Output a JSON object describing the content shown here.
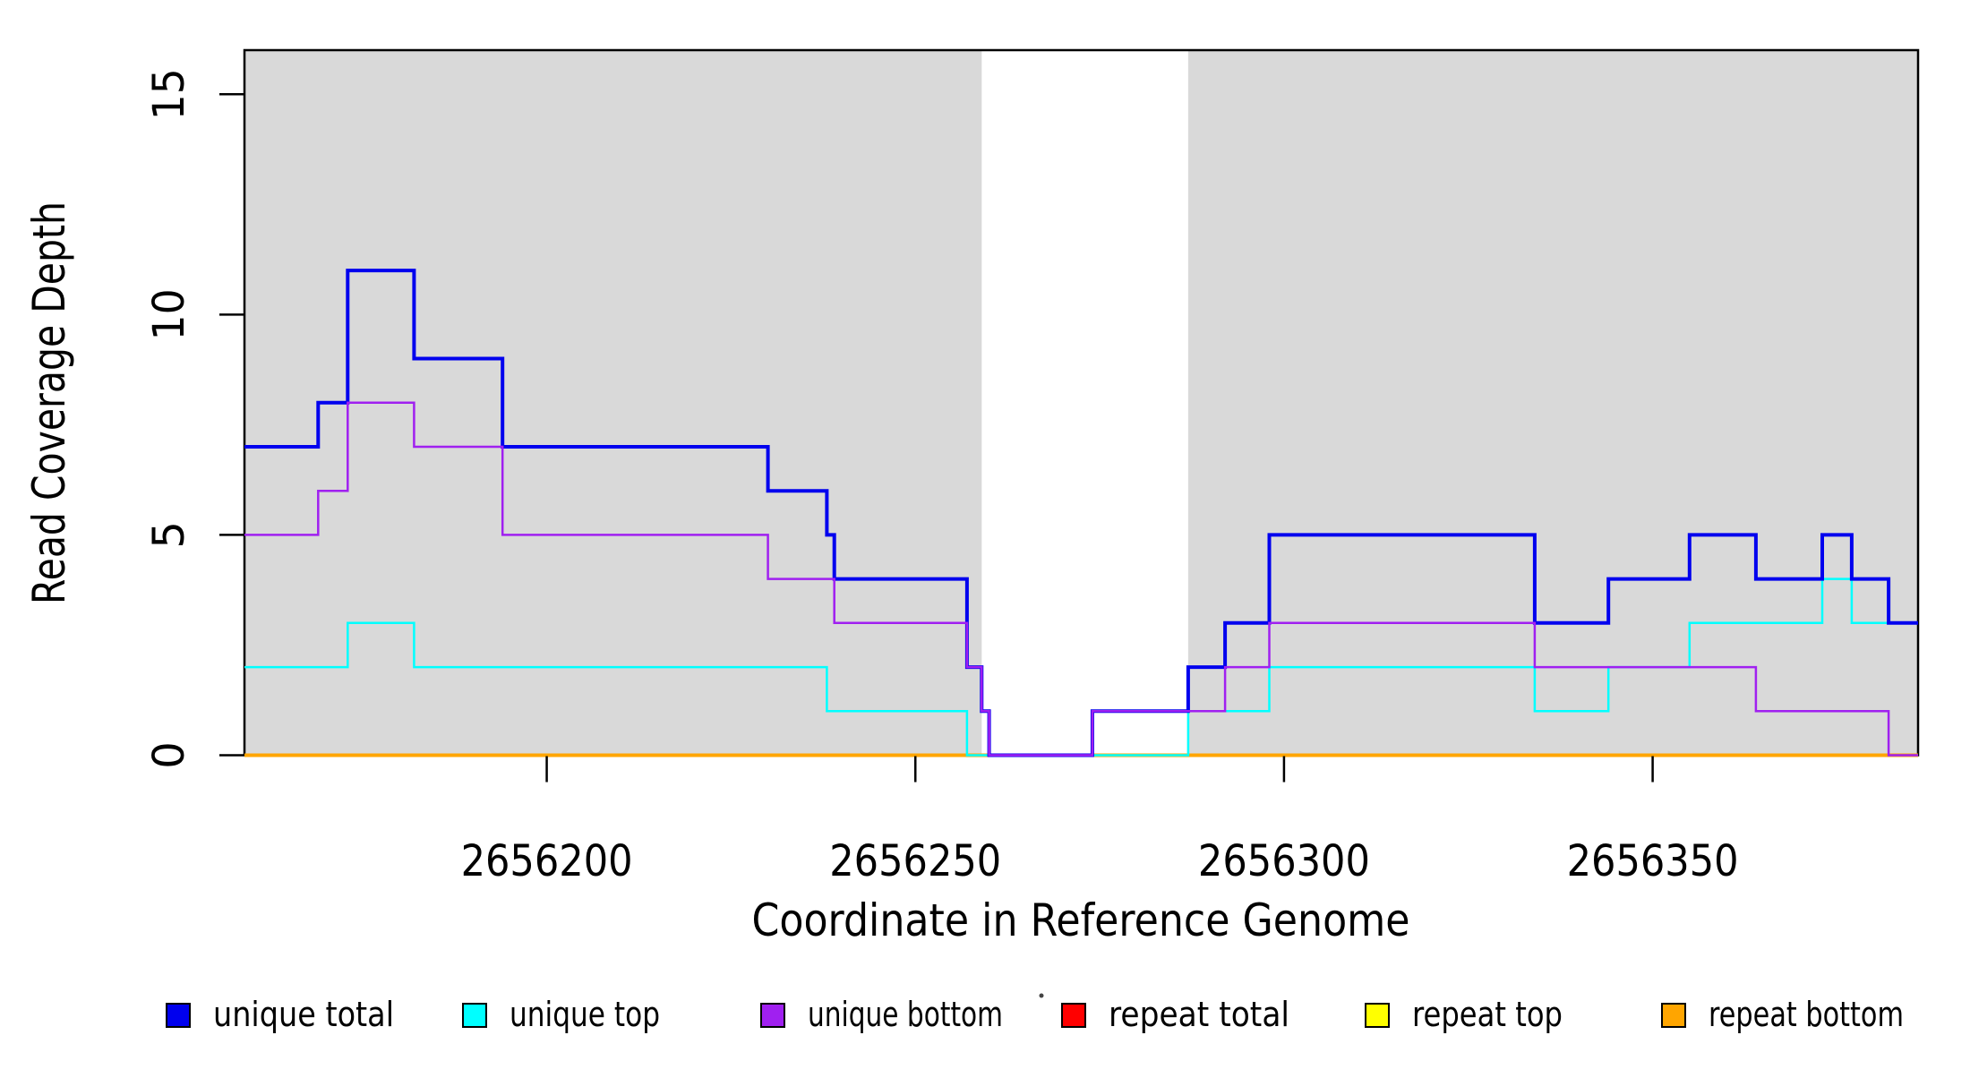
{
  "chart_data": {
    "type": "line",
    "subtype": "step-coverage-plot",
    "title": "",
    "xlabel": "Coordinate in Reference Genome",
    "ylabel": "Read Coverage Depth",
    "xlim": [
      2656159,
      2656386
    ],
    "ylim": [
      0,
      16
    ],
    "grid": false,
    "x_ticks": [
      {
        "value": 2656200,
        "label": "2656200"
      },
      {
        "value": 2656250,
        "label": "2656250"
      },
      {
        "value": 2656300,
        "label": "2656300"
      },
      {
        "value": 2656350,
        "label": "2656350"
      }
    ],
    "y_ticks": [
      {
        "value": 0,
        "label": "0"
      },
      {
        "value": 5,
        "label": "5"
      },
      {
        "value": 10,
        "label": "10"
      },
      {
        "value": 15,
        "label": "15"
      }
    ],
    "background": {
      "plot_color": "#ffffff",
      "shaded_color": "#d9d9d9",
      "border_color": "#000000",
      "shaded_regions": [
        {
          "from": 2656159,
          "to": 2656259
        },
        {
          "from": 2656287,
          "to": 2656386
        }
      ],
      "unshaded_gap": {
        "from": 2656259,
        "to": 2656287
      }
    },
    "series": [
      {
        "name": "unique total",
        "color": "#0000ee",
        "width": 4,
        "z": 5,
        "points": [
          [
            2656159,
            7
          ],
          [
            2656169,
            8
          ],
          [
            2656173,
            11
          ],
          [
            2656182,
            9
          ],
          [
            2656194,
            7
          ],
          [
            2656230,
            6
          ],
          [
            2656238,
            5
          ],
          [
            2656239,
            4
          ],
          [
            2656257,
            2
          ],
          [
            2656259,
            1
          ],
          [
            2656260,
            0
          ],
          [
            2656274,
            1
          ],
          [
            2656287,
            2
          ],
          [
            2656292,
            3
          ],
          [
            2656298,
            5
          ],
          [
            2656334,
            3
          ],
          [
            2656344,
            4
          ],
          [
            2656355,
            5
          ],
          [
            2656364,
            4
          ],
          [
            2656373,
            5
          ],
          [
            2656377,
            4
          ],
          [
            2656382,
            3
          ]
        ]
      },
      {
        "name": "unique top",
        "color": "#00ffff",
        "width": 2.5,
        "z": 4,
        "points": [
          [
            2656159,
            2
          ],
          [
            2656173,
            3
          ],
          [
            2656182,
            2
          ],
          [
            2656238,
            1
          ],
          [
            2656257,
            0
          ],
          [
            2656287,
            1
          ],
          [
            2656298,
            2
          ],
          [
            2656334,
            1
          ],
          [
            2656344,
            2
          ],
          [
            2656355,
            3
          ],
          [
            2656373,
            4
          ],
          [
            2656377,
            3
          ]
        ]
      },
      {
        "name": "unique bottom",
        "color": "#a020f0",
        "width": 2.5,
        "z": 6,
        "points": [
          [
            2656159,
            5
          ],
          [
            2656169,
            6
          ],
          [
            2656173,
            8
          ],
          [
            2656182,
            7
          ],
          [
            2656194,
            5
          ],
          [
            2656230,
            4
          ],
          [
            2656239,
            3
          ],
          [
            2656257,
            2
          ],
          [
            2656259,
            1
          ],
          [
            2656260,
            0
          ],
          [
            2656274,
            1
          ],
          [
            2656292,
            2
          ],
          [
            2656298,
            3
          ],
          [
            2656334,
            2
          ],
          [
            2656364,
            1
          ],
          [
            2656382,
            0
          ]
        ]
      },
      {
        "name": "repeat total",
        "color": "#ff0000",
        "width": 3,
        "z": 1,
        "points": [
          [
            2656159,
            0
          ]
        ]
      },
      {
        "name": "repeat top",
        "color": "#ffff00",
        "width": 3,
        "z": 2,
        "points": [
          [
            2656159,
            0
          ]
        ]
      },
      {
        "name": "repeat bottom",
        "color": "#ffa500",
        "width": 4,
        "z": 3,
        "points": [
          [
            2656159,
            0
          ]
        ]
      }
    ],
    "legend": {
      "position": "bottom",
      "items": [
        {
          "label": "unique total",
          "color": "#0000ee"
        },
        {
          "label": "unique top",
          "color": "#00ffff"
        },
        {
          "label": "unique bottom",
          "color": "#a020f0"
        },
        {
          "label": "repeat total",
          "color": "#ff0000"
        },
        {
          "label": "repeat top",
          "color": "#ffff00"
        },
        {
          "label": "repeat bottom",
          "color": "#ffa500"
        }
      ]
    }
  }
}
